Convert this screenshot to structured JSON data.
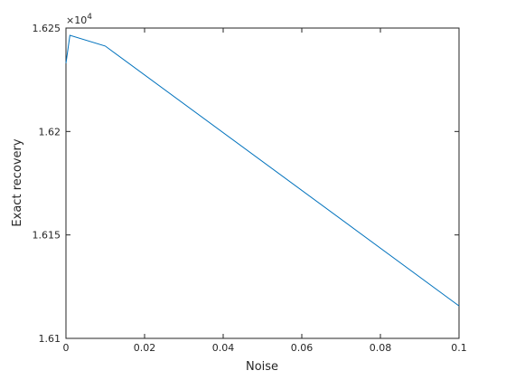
{
  "chart_data": {
    "type": "line",
    "xlabel": "Noise",
    "ylabel": "Exact recovery",
    "y_multiplier": {
      "base": "×10",
      "exponent": "4"
    },
    "x": [
      0,
      0.001,
      0.01,
      0.1
    ],
    "series": [
      {
        "color": "#0072bd",
        "values": [
          1.6233,
          1.62465,
          1.62413,
          1.61157
        ]
      }
    ],
    "xlim": [
      0,
      0.1
    ],
    "xticks": [
      0,
      0.02,
      0.04,
      0.06,
      0.08,
      0.1
    ],
    "ylim": [
      1.61,
      1.625
    ],
    "yticks": [
      1.61,
      1.615,
      1.62,
      1.625
    ]
  }
}
